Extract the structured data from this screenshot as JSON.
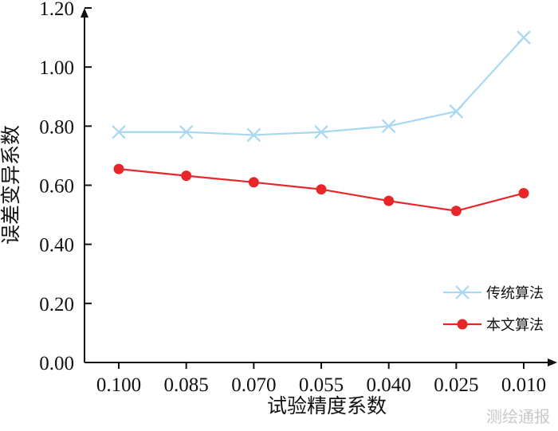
{
  "chart_data": {
    "type": "line",
    "categories": [
      "0.100",
      "0.085",
      "0.070",
      "0.055",
      "0.040",
      "0.025",
      "0.010"
    ],
    "series": [
      {
        "name": "传统算法",
        "color": "#a8d8f0",
        "marker": "x",
        "values": [
          0.78,
          0.78,
          0.77,
          0.78,
          0.8,
          0.85,
          1.1
        ]
      },
      {
        "name": "本文算法",
        "color": "#e8262a",
        "marker": "circle",
        "values": [
          0.655,
          0.632,
          0.61,
          0.586,
          0.547,
          0.513,
          0.573
        ]
      }
    ],
    "xlabel": "试验精度系数",
    "ylabel": "误差变异系数",
    "ylim": [
      0,
      1.2
    ],
    "yticks": [
      "0.00",
      "0.20",
      "0.40",
      "0.60",
      "0.80",
      "1.00",
      "1.20"
    ],
    "grid": false,
    "legend_position": "lower-right"
  },
  "watermark": "测绘通报"
}
